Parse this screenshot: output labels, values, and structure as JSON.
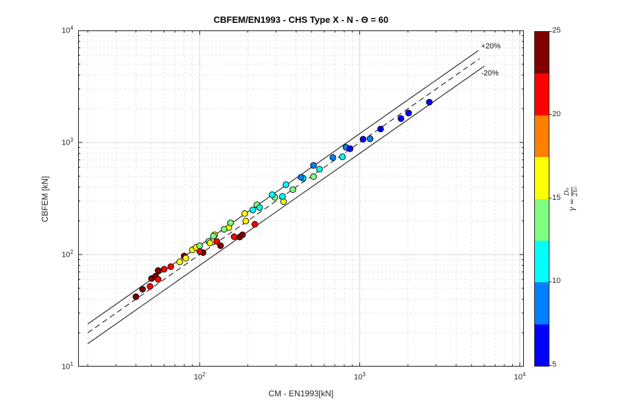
{
  "title": "CBFEM/EN1993 - CHS Type X - N - Θ = 60",
  "axes": {
    "x_label": "CM - EN1993[kN]",
    "y_label": "CBFEM [kN]"
  },
  "annotations": {
    "plus20": "+20%",
    "minus20": "-20%"
  },
  "colorbar": {
    "range": [
      5,
      25
    ],
    "ticks": [
      25,
      20,
      15,
      10,
      5
    ],
    "colors": [
      "#0000FF",
      "#0080FF",
      "#00FFFF",
      "#80FF80",
      "#FFFF00",
      "#FF8000",
      "#FF0000",
      "#800000"
    ],
    "label_gamma": "γ",
    "label_eq": "=",
    "label_num": "D₀",
    "label_den": "2t₀"
  },
  "chart_data": {
    "type": "scatter",
    "title": "CBFEM/EN1993 - CHS Type X - N - Θ = 60",
    "xlabel": "CM - EN1993[kN]",
    "ylabel": "CBFEM [kN]",
    "x_scale": "log",
    "y_scale": "log",
    "xlim": [
      17.4,
      10600
    ],
    "ylim": [
      10,
      10000
    ],
    "grid": "major-solid minor-dashed",
    "x_major": [
      {
        "v": 100,
        "exp": "2"
      },
      {
        "v": 1000,
        "exp": "3"
      },
      {
        "v": 10000,
        "exp": "4"
      }
    ],
    "y_major": [
      {
        "v": 10,
        "exp": "1"
      },
      {
        "v": 100,
        "exp": "2"
      },
      {
        "v": 1000,
        "exp": "3"
      },
      {
        "v": 10000,
        "exp": "4"
      }
    ],
    "reference_lines": [
      {
        "label": "+20%",
        "ratio": 1.2,
        "style": "solid",
        "x_range": [
          20,
          5500
        ]
      },
      {
        "label": "1:1",
        "ratio": 1.0,
        "style": "dashed",
        "x_range": [
          20,
          5600
        ]
      },
      {
        "label": "-20%",
        "ratio": 0.8,
        "style": "solid",
        "x_range": [
          20,
          6000
        ]
      }
    ],
    "color_by": "gamma = D0/(2 t0)",
    "colormap": "jet-8-discrete",
    "clim": [
      5,
      25
    ],
    "points_format": [
      "cm_en1993_kN",
      "cbfem_kN",
      "gamma"
    ],
    "points": [
      [
        40,
        42,
        25
      ],
      [
        44,
        49,
        24
      ],
      [
        50,
        61,
        23
      ],
      [
        53,
        64,
        24
      ],
      [
        55,
        72,
        25
      ],
      [
        80,
        97,
        23
      ],
      [
        105,
        104,
        24
      ],
      [
        135,
        120,
        25
      ],
      [
        178,
        143,
        24
      ],
      [
        185,
        150,
        23
      ],
      [
        49,
        52,
        21
      ],
      [
        55,
        60,
        22
      ],
      [
        60,
        74,
        21
      ],
      [
        66,
        78,
        20.5
      ],
      [
        100,
        107,
        21
      ],
      [
        128,
        131,
        22
      ],
      [
        164,
        144,
        21
      ],
      [
        221,
        186,
        20.5
      ],
      [
        75,
        86,
        16
      ],
      [
        82,
        93,
        17
      ],
      [
        90,
        110,
        16
      ],
      [
        95,
        116,
        15.5
      ],
      [
        124,
        150,
        15.5
      ],
      [
        152,
        174,
        16
      ],
      [
        194,
        199,
        17
      ],
      [
        334,
        297,
        16
      ],
      [
        100,
        120,
        14
      ],
      [
        114,
        131,
        13
      ],
      [
        116,
        127,
        15
      ],
      [
        122,
        146,
        14
      ],
      [
        142,
        168,
        13
      ],
      [
        156,
        192,
        14
      ],
      [
        191,
        232,
        15
      ],
      [
        228,
        278,
        14
      ],
      [
        295,
        325,
        13
      ],
      [
        382,
        380,
        14
      ],
      [
        514,
        496,
        13
      ],
      [
        215,
        250,
        11
      ],
      [
        237,
        262,
        12
      ],
      [
        284,
        342,
        11
      ],
      [
        329,
        330,
        10.5
      ],
      [
        346,
        420,
        11
      ],
      [
        443,
        480,
        12
      ],
      [
        560,
        578,
        11
      ],
      [
        780,
        745,
        10.5
      ],
      [
        430,
        490,
        9
      ],
      [
        514,
        625,
        8
      ],
      [
        680,
        734,
        9
      ],
      [
        820,
        906,
        9.5
      ],
      [
        1160,
        1080,
        8.5
      ],
      [
        870,
        880,
        6
      ],
      [
        1050,
        1070,
        5
      ],
      [
        1350,
        1320,
        6
      ],
      [
        1810,
        1635,
        5
      ],
      [
        2020,
        1830,
        6
      ],
      [
        2720,
        2290,
        5
      ]
    ]
  }
}
